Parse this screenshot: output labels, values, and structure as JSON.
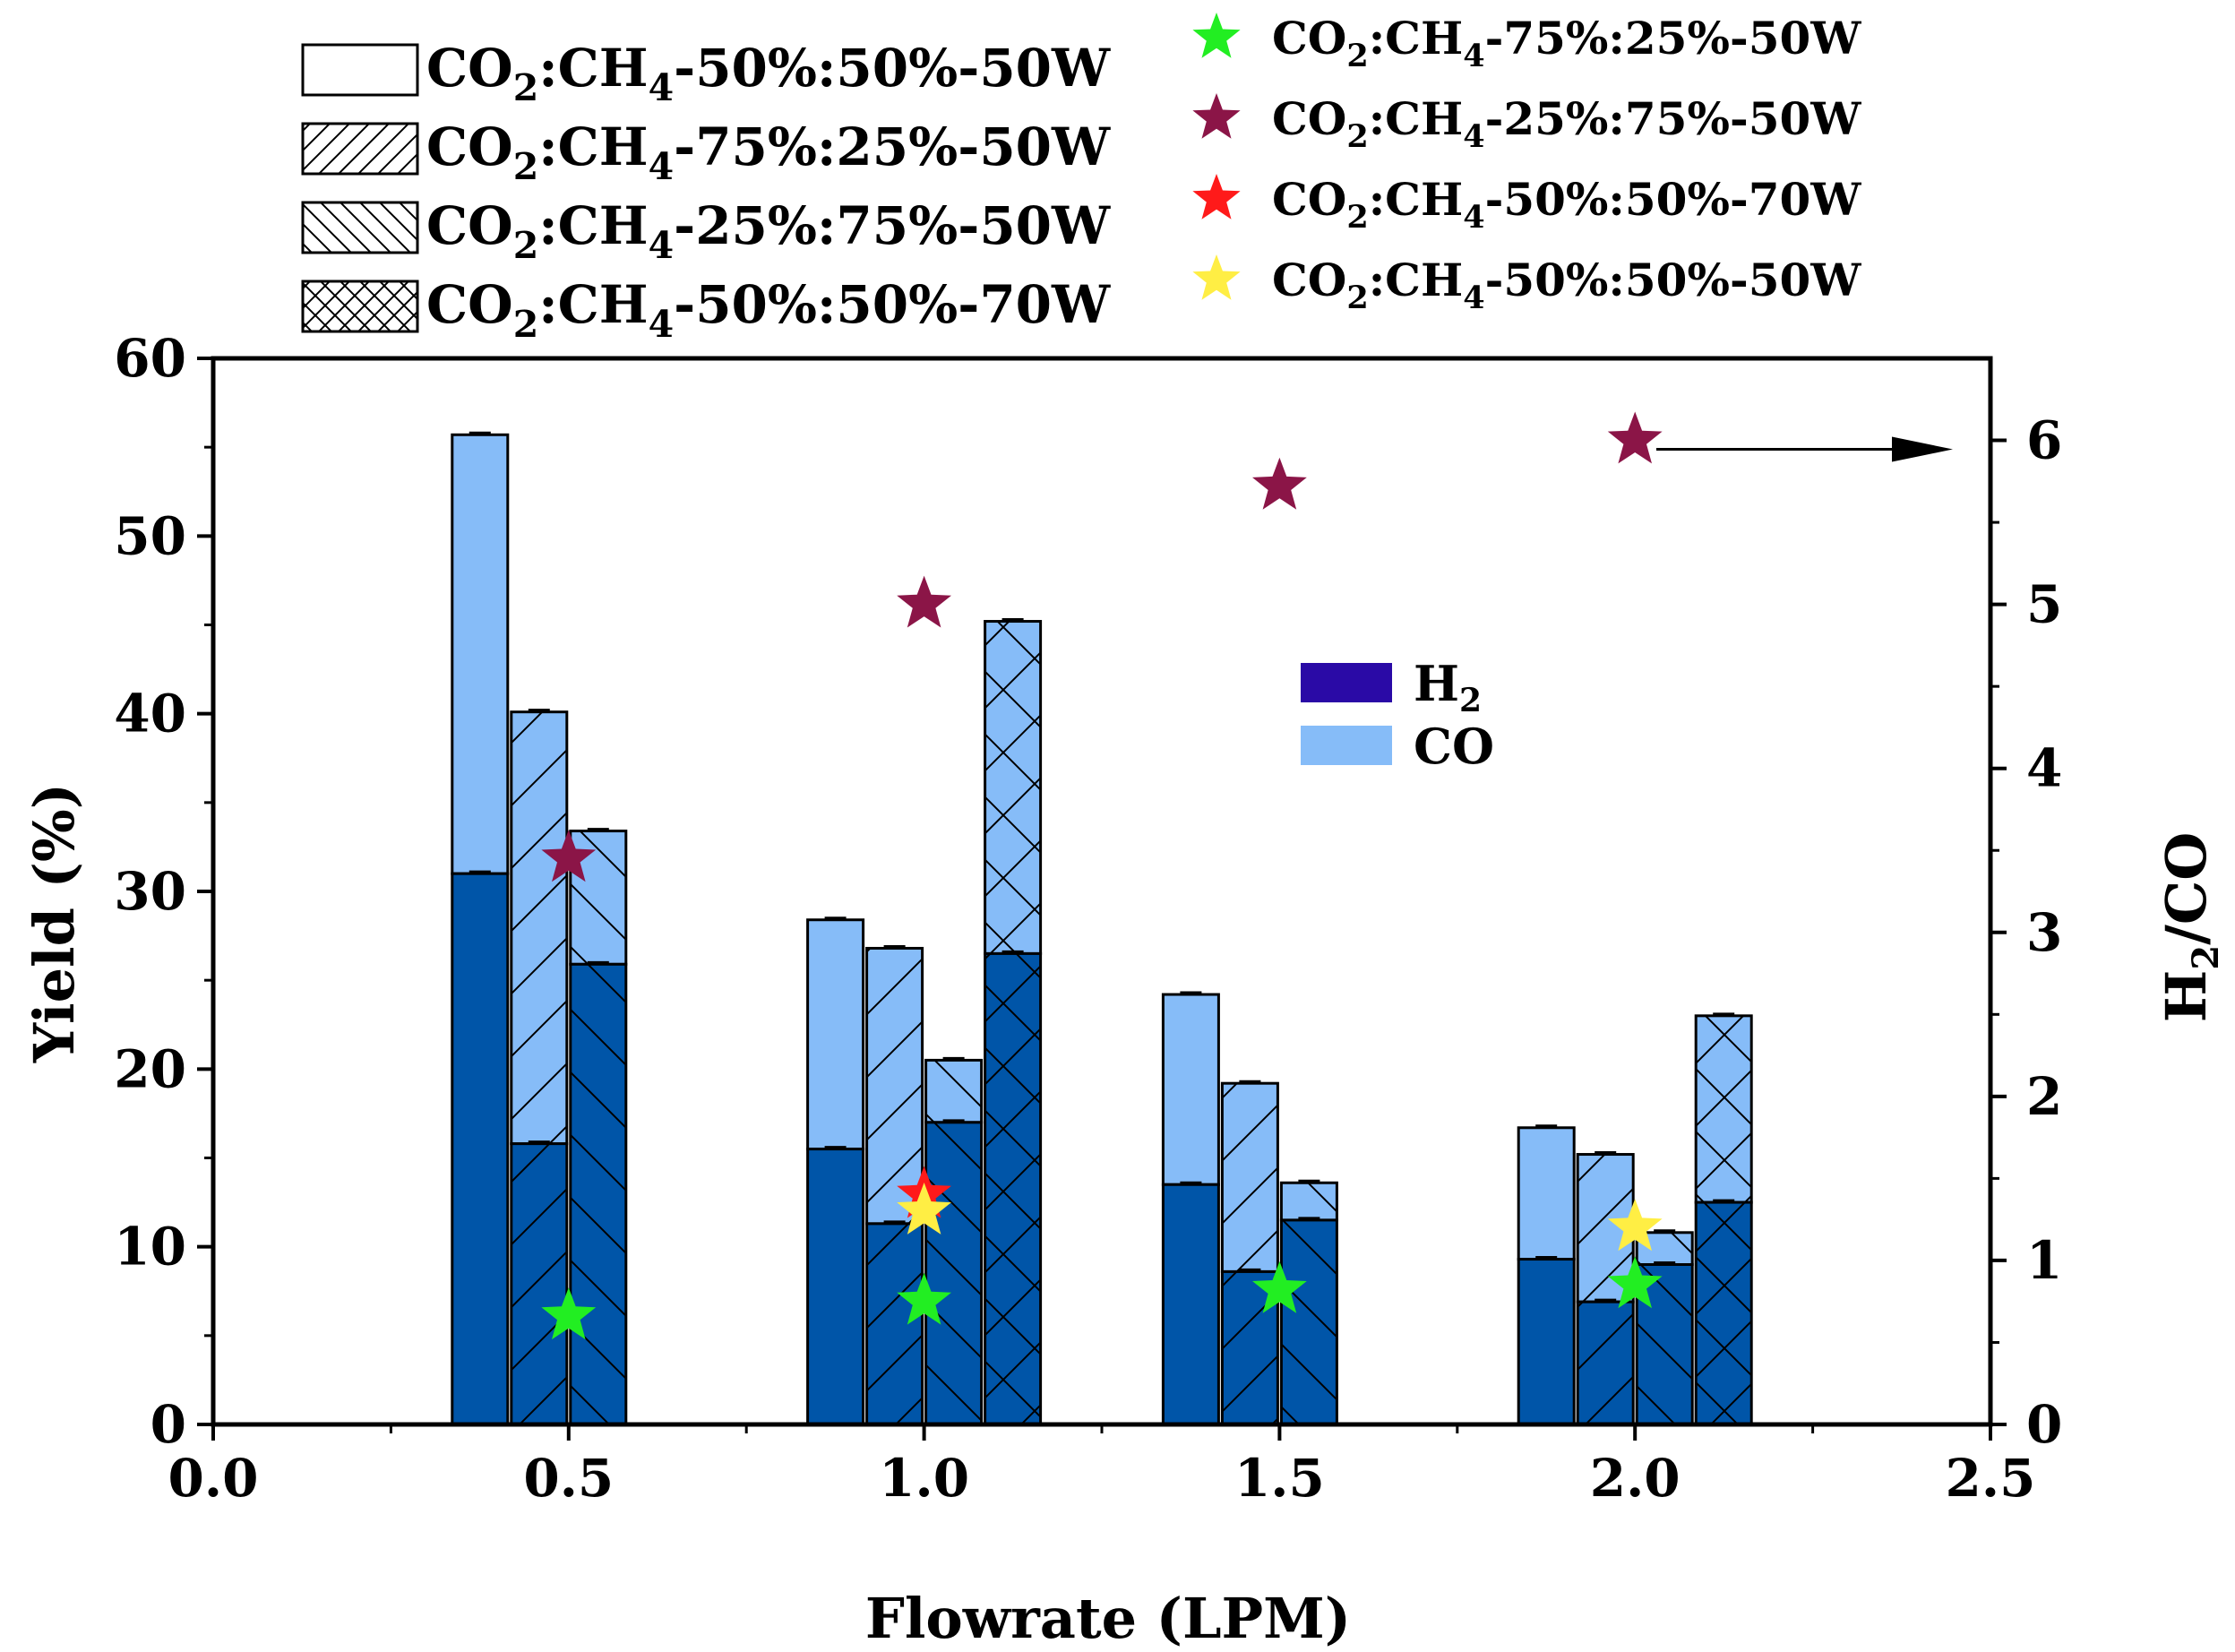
{
  "chart_data": {
    "type": "bar",
    "subtype": "stacked-grouped-bar-with-secondary-scatter",
    "xlabel": "Flowrate (LPM)",
    "ylabel": "Yield (%)",
    "y2label": "H2/CO",
    "y2label_main": "H",
    "y2label_sub": "2",
    "y2label_rest": "/CO",
    "xlim": [
      0.0,
      2.5
    ],
    "ylim": [
      0,
      60
    ],
    "y2lim": [
      0,
      6.5
    ],
    "xticks": [
      "0.0",
      "0.5",
      "1.0",
      "1.5",
      "2.0",
      "2.5"
    ],
    "yticks": [
      "0",
      "10",
      "20",
      "30",
      "40",
      "50",
      "60"
    ],
    "y2ticks": [
      "0",
      "1",
      "2",
      "3",
      "4",
      "5",
      "6"
    ],
    "categories": [
      "0.5",
      "1.0",
      "1.5",
      "2.0"
    ],
    "colors": {
      "H2": "#0055a8",
      "CO": "#86bcf8",
      "green": "#22ee22",
      "maroon": "#8b1547",
      "red": "#ff1a1a",
      "yellow": "#ffee44",
      "stroke": "#000000"
    },
    "stack_legend": [
      {
        "label": "H",
        "sub": "2",
        "color": "#2a0aa6"
      },
      {
        "label": "CO",
        "sub": "",
        "color": "#86bcf8"
      }
    ],
    "condition_legend": [
      {
        "pre": "CO",
        "s1": "2",
        "mid": ":CH",
        "s2": "4",
        "post": "-50%:50%-50W",
        "hatch": "none"
      },
      {
        "pre": "CO",
        "s1": "2",
        "mid": ":CH",
        "s2": "4",
        "post": "-75%:25%-50W",
        "hatch": "diag-up"
      },
      {
        "pre": "CO",
        "s1": "2",
        "mid": ":CH",
        "s2": "4",
        "post": "-25%:75%-50W",
        "hatch": "diag-down"
      },
      {
        "pre": "CO",
        "s1": "2",
        "mid": ":CH",
        "s2": "4",
        "post": "-50%:50%-70W",
        "hatch": "cross"
      }
    ],
    "star_legend": [
      {
        "pre": "CO",
        "s1": "2",
        "mid": ":CH",
        "s2": "4",
        "post": "-75%:25%-50W",
        "color": "#22ee22"
      },
      {
        "pre": "CO",
        "s1": "2",
        "mid": ":CH",
        "s2": "4",
        "post": "-25%:75%-50W",
        "color": "#8b1547"
      },
      {
        "pre": "CO",
        "s1": "2",
        "mid": ":CH",
        "s2": "4",
        "post": "-50%:50%-70W",
        "color": "#ff1a1a"
      },
      {
        "pre": "CO",
        "s1": "2",
        "mid": ":CH",
        "s2": "4",
        "post": "-50%:50%-50W",
        "color": "#ffee44"
      }
    ],
    "bar_series": [
      {
        "name": "CO2:CH4-50%:50%-50W",
        "hatch": "none",
        "bars": [
          {
            "x": 0.5,
            "h2": 31.0,
            "total": 55.7
          },
          {
            "x": 1.0,
            "h2": 15.5,
            "total": 28.4
          },
          {
            "x": 1.5,
            "h2": 13.5,
            "total": 24.2
          },
          {
            "x": 2.0,
            "h2": 9.3,
            "total": 16.7
          }
        ]
      },
      {
        "name": "CO2:CH4-75%:25%-50W",
        "hatch": "diag-up",
        "bars": [
          {
            "x": 0.5,
            "h2": 15.8,
            "total": 40.1
          },
          {
            "x": 1.0,
            "h2": 11.3,
            "total": 26.8
          },
          {
            "x": 1.5,
            "h2": 8.6,
            "total": 19.2
          },
          {
            "x": 2.0,
            "h2": 6.9,
            "total": 15.2
          }
        ]
      },
      {
        "name": "CO2:CH4-25%:75%-50W",
        "hatch": "diag-down",
        "bars": [
          {
            "x": 0.5,
            "h2": 25.9,
            "total": 33.4
          },
          {
            "x": 1.0,
            "h2": 17.0,
            "total": 20.5
          },
          {
            "x": 1.5,
            "h2": 11.5,
            "total": 13.6
          },
          {
            "x": 2.0,
            "h2": 9.0,
            "total": 10.8
          }
        ]
      },
      {
        "name": "CO2:CH4-50%:50%-70W",
        "hatch": "cross",
        "bars": [
          {
            "x": 1.0,
            "h2": 26.5,
            "total": 45.2
          },
          {
            "x": 2.0,
            "h2": 12.5,
            "total": 23.0
          }
        ]
      }
    ],
    "ratio_series": [
      {
        "name": "CO2:CH4-75%:25%-50W",
        "color": "#22ee22",
        "x": [
          0.5,
          1.0,
          1.5,
          2.0
        ],
        "y": [
          0.66,
          0.75,
          0.82,
          0.85
        ]
      },
      {
        "name": "CO2:CH4-25%:75%-50W",
        "color": "#8b1547",
        "x": [
          0.5,
          1.0,
          1.5,
          2.0
        ],
        "y": [
          3.45,
          5.0,
          5.72,
          6.0
        ]
      },
      {
        "name": "CO2:CH4-50%:50%-70W",
        "color": "#ff1a1a",
        "x": [
          1.0
        ],
        "y": [
          1.4
        ]
      },
      {
        "name": "CO2:CH4-50%:50%-50W",
        "color": "#ffee44",
        "x": [
          1.0,
          2.0
        ],
        "y": [
          1.3,
          1.2
        ]
      }
    ]
  }
}
